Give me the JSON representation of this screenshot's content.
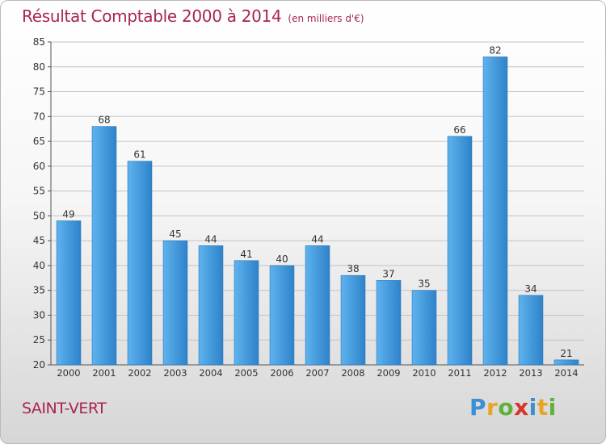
{
  "header": {
    "title": "Résultat Comptable 2000 à 2014",
    "subtitle": "(en milliers d'€)"
  },
  "footer": {
    "commune": "SAINT-VERT",
    "brand": {
      "letters": [
        {
          "ch": "P",
          "color": "#3b8fd6"
        },
        {
          "ch": "r",
          "color": "#e8a423"
        },
        {
          "ch": "o",
          "color": "#5fb13a"
        },
        {
          "ch": "x",
          "color": "#d8342c"
        },
        {
          "ch": "i",
          "color": "#3b8fd6"
        },
        {
          "ch": "t",
          "color": "#e8a423"
        },
        {
          "ch": "i",
          "color": "#5fb13a"
        }
      ]
    }
  },
  "chart_data": {
    "type": "bar",
    "categories": [
      "2000",
      "2001",
      "2002",
      "2003",
      "2004",
      "2005",
      "2006",
      "2007",
      "2008",
      "2009",
      "2010",
      "2011",
      "2012",
      "2013",
      "2014"
    ],
    "values": [
      49,
      68,
      61,
      45,
      44,
      41,
      40,
      44,
      38,
      37,
      35,
      66,
      82,
      34,
      21
    ],
    "ylim": [
      20,
      85
    ],
    "yticks": [
      20,
      25,
      30,
      35,
      40,
      45,
      50,
      55,
      60,
      65,
      70,
      75,
      80,
      85
    ],
    "grid": true,
    "bar_color": "#3d95d9",
    "data_labels": true
  }
}
